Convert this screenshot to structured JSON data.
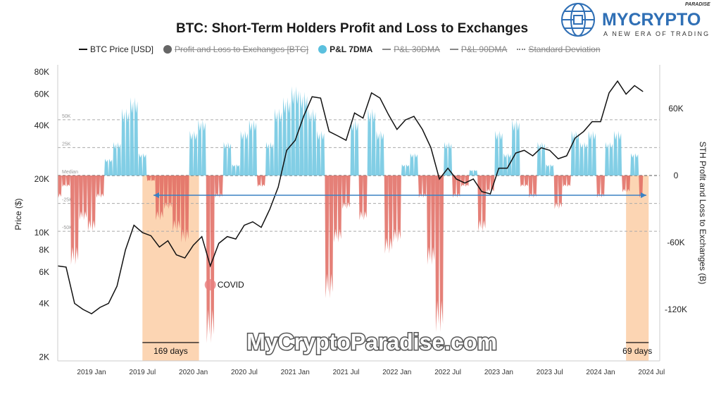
{
  "logo": {
    "brand": "MYCRYPTO",
    "sub": "PARADISE",
    "tagline": "A NEW ERA OF TRADING"
  },
  "watermark": "MyCryptoParadise.com",
  "chart_data": {
    "type": "area",
    "title": "BTC: Short-Term Holders Profit and Loss to Exchanges",
    "legend": [
      {
        "label": "BTC Price [USD]",
        "active": true,
        "color": "#111111"
      },
      {
        "label": "Profit and Loss to Exchanges [BTC]",
        "active": false,
        "color": "#666666"
      },
      {
        "label": "P&L 7DMA",
        "active": true,
        "color": "#5bc0de"
      },
      {
        "label": "P&L 30DMA",
        "active": false
      },
      {
        "label": "P&L 90DMA",
        "active": false
      },
      {
        "label": "Standard Deviation",
        "active": false
      }
    ],
    "ylabel_left": "Price ($)",
    "ylabel_right": "STH Profit and Loss to Exchanges (B)",
    "left_ticks": [
      "80K",
      "60K",
      "40K",
      "20K",
      "10K",
      "8K",
      "6K",
      "4K",
      "2K"
    ],
    "left_tick_values": [
      80000,
      60000,
      40000,
      20000,
      10000,
      8000,
      6000,
      4000,
      2000
    ],
    "right_ticks": [
      "60K",
      "0",
      "-60K",
      "-120K"
    ],
    "right_tick_values": [
      60,
      0,
      -60,
      -120
    ],
    "x_ticks": [
      "2019 Jan",
      "2019 Jul",
      "2020 Jan",
      "2020 Jul",
      "2021 Jan",
      "2021 Jul",
      "2022 Jan",
      "2022 Jul",
      "2023 Jan",
      "2023 Jul",
      "2024 Jan",
      "2024 Jul"
    ],
    "bands": [
      {
        "label": "50K",
        "value": 50
      },
      {
        "label": "25K",
        "value": 25
      },
      {
        "label": "Median",
        "value": 0
      },
      {
        "label": "-25K",
        "value": -25
      },
      {
        "label": "-50K",
        "value": -50
      }
    ],
    "start_month": "2018-09",
    "btc_price": [
      6500,
      6400,
      4000,
      3700,
      3500,
      3800,
      4000,
      5000,
      8000,
      11000,
      10000,
      9600,
      8300,
      9000,
      7500,
      7200,
      8500,
      9500,
      6500,
      8700,
      9500,
      9200,
      11000,
      11500,
      10700,
      13500,
      18000,
      29000,
      33000,
      45000,
      58000,
      57000,
      37000,
      35000,
      33000,
      47000,
      44000,
      61000,
      57000,
      46000,
      38000,
      43000,
      45000,
      38000,
      30000,
      20000,
      23000,
      20000,
      19000,
      20000,
      17000,
      16500,
      23000,
      23000,
      28000,
      29000,
      27000,
      30000,
      29000,
      26000,
      27000,
      34000,
      37000,
      42000,
      42000,
      61000,
      71000,
      60000,
      67000,
      62000
    ],
    "pnl_7dma_k": [
      -20,
      -10,
      -80,
      -40,
      -50,
      -20,
      15,
      30,
      60,
      70,
      20,
      -5,
      -40,
      -30,
      -50,
      -60,
      40,
      50,
      -150,
      -20,
      30,
      10,
      40,
      50,
      -10,
      30,
      60,
      70,
      80,
      75,
      60,
      40,
      -110,
      -60,
      -30,
      50,
      -40,
      60,
      40,
      -70,
      -60,
      10,
      20,
      -20,
      -80,
      -140,
      30,
      -20,
      -10,
      5,
      -50,
      -15,
      40,
      20,
      50,
      -10,
      -20,
      30,
      10,
      -30,
      -10,
      40,
      30,
      40,
      -20,
      30,
      40,
      -15,
      20,
      -20
    ],
    "highlight_ranges": [
      {
        "from": "2019-07",
        "to": "2020-01",
        "label": "169 days"
      },
      {
        "from": "2024-04",
        "to": "2024-06",
        "label": "69 days"
      }
    ],
    "annotations": [
      {
        "label": "COVID",
        "date": "2020-03"
      }
    ],
    "ylim_left": [
      2000,
      80000
    ],
    "ylim_right": [
      -160,
      70
    ]
  }
}
